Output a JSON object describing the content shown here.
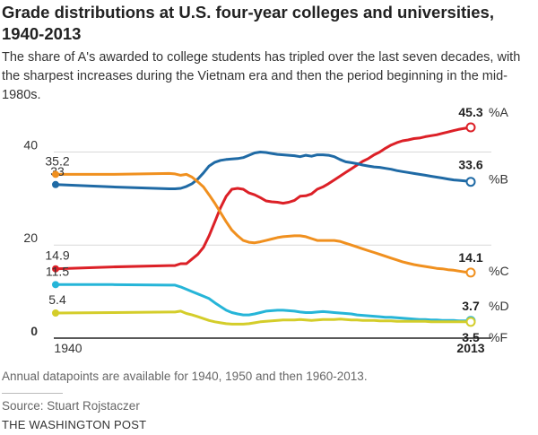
{
  "header": {
    "title": "Grade distributions at U.S. four-year colleges and universities, 1940-2013",
    "subtitle": "The share of A's awarded to college students has tripled over the last seven decades, with the sharpest increases during the Vietnam era and then the period beginning in the mid-1980s."
  },
  "footer": {
    "note": "Annual datapoints are available for 1940, 1950 and then 1960-2013.",
    "source": "Source: Stuart Rojstaczer",
    "brand": "THE WASHINGTON POST"
  },
  "chart_data": {
    "type": "line",
    "title": "Grade distributions at U.S. four-year colleges and universities, 1940-2013",
    "xlabel": "",
    "ylabel": "",
    "xlim": [
      1940,
      2013
    ],
    "ylim": [
      0,
      45.3
    ],
    "yticks": [
      0,
      20,
      40
    ],
    "xtick_labels": [
      "1940",
      "2013"
    ],
    "grid": true,
    "series": [
      {
        "name": "%A",
        "color": "#dc2027",
        "start_label": "14.9",
        "end_label": "45.3",
        "points": [
          [
            1940,
            14.9
          ],
          [
            1950,
            15.3
          ],
          [
            1960,
            15.6
          ],
          [
            1961,
            15.6
          ],
          [
            1962,
            16.0
          ],
          [
            1963,
            16.0
          ],
          [
            1964,
            17.0
          ],
          [
            1965,
            18.0
          ],
          [
            1966,
            19.5
          ],
          [
            1967,
            22.0
          ],
          [
            1968,
            25.0
          ],
          [
            1969,
            28.0
          ],
          [
            1970,
            30.5
          ],
          [
            1971,
            32.0
          ],
          [
            1972,
            32.2
          ],
          [
            1973,
            32.0
          ],
          [
            1974,
            31.2
          ],
          [
            1975,
            30.8
          ],
          [
            1976,
            30.2
          ],
          [
            1977,
            29.5
          ],
          [
            1978,
            29.3
          ],
          [
            1979,
            29.2
          ],
          [
            1980,
            29.0
          ],
          [
            1981,
            29.2
          ],
          [
            1982,
            29.6
          ],
          [
            1983,
            30.5
          ],
          [
            1984,
            30.6
          ],
          [
            1985,
            31.0
          ],
          [
            1986,
            32.0
          ],
          [
            1987,
            32.5
          ],
          [
            1988,
            33.2
          ],
          [
            1989,
            34.0
          ],
          [
            1990,
            34.8
          ],
          [
            1991,
            35.6
          ],
          [
            1992,
            36.4
          ],
          [
            1993,
            37.2
          ],
          [
            1994,
            38.0
          ],
          [
            1995,
            38.6
          ],
          [
            1996,
            39.4
          ],
          [
            1997,
            40.0
          ],
          [
            1998,
            40.8
          ],
          [
            1999,
            41.5
          ],
          [
            2000,
            42.0
          ],
          [
            2001,
            42.4
          ],
          [
            2002,
            42.6
          ],
          [
            2003,
            42.9
          ],
          [
            2004,
            43.0
          ],
          [
            2005,
            43.3
          ],
          [
            2006,
            43.5
          ],
          [
            2007,
            43.7
          ],
          [
            2008,
            44.0
          ],
          [
            2009,
            44.3
          ],
          [
            2010,
            44.6
          ],
          [
            2011,
            44.9
          ],
          [
            2012,
            45.1
          ],
          [
            2013,
            45.3
          ]
        ]
      },
      {
        "name": "%B",
        "color": "#1f6aa5",
        "start_label": "33",
        "end_label": "33.6",
        "points": [
          [
            1940,
            33.0
          ],
          [
            1950,
            32.5
          ],
          [
            1960,
            32.1
          ],
          [
            1961,
            32.1
          ],
          [
            1962,
            32.2
          ],
          [
            1963,
            32.6
          ],
          [
            1964,
            33.2
          ],
          [
            1965,
            34.2
          ],
          [
            1966,
            35.5
          ],
          [
            1967,
            37.0
          ],
          [
            1968,
            37.8
          ],
          [
            1969,
            38.2
          ],
          [
            1970,
            38.4
          ],
          [
            1971,
            38.5
          ],
          [
            1972,
            38.6
          ],
          [
            1973,
            38.8
          ],
          [
            1974,
            39.3
          ],
          [
            1975,
            39.8
          ],
          [
            1976,
            40.0
          ],
          [
            1977,
            39.9
          ],
          [
            1978,
            39.7
          ],
          [
            1979,
            39.5
          ],
          [
            1980,
            39.4
          ],
          [
            1981,
            39.3
          ],
          [
            1982,
            39.2
          ],
          [
            1983,
            39.0
          ],
          [
            1984,
            39.3
          ],
          [
            1985,
            39.1
          ],
          [
            1986,
            39.4
          ],
          [
            1987,
            39.4
          ],
          [
            1988,
            39.3
          ],
          [
            1989,
            39.0
          ],
          [
            1990,
            38.4
          ],
          [
            1991,
            37.9
          ],
          [
            1992,
            37.7
          ],
          [
            1993,
            37.5
          ],
          [
            1994,
            37.2
          ],
          [
            1995,
            37.0
          ],
          [
            1996,
            36.8
          ],
          [
            1997,
            36.7
          ],
          [
            1998,
            36.5
          ],
          [
            1999,
            36.3
          ],
          [
            2000,
            36.0
          ],
          [
            2001,
            35.8
          ],
          [
            2002,
            35.6
          ],
          [
            2003,
            35.4
          ],
          [
            2004,
            35.2
          ],
          [
            2005,
            35.0
          ],
          [
            2006,
            34.8
          ],
          [
            2007,
            34.6
          ],
          [
            2008,
            34.4
          ],
          [
            2009,
            34.2
          ],
          [
            2010,
            34.0
          ],
          [
            2011,
            33.9
          ],
          [
            2012,
            33.8
          ],
          [
            2013,
            33.6
          ]
        ]
      },
      {
        "name": "%C",
        "color": "#f0901f",
        "start_label": "35.2",
        "end_label": "14.1",
        "points": [
          [
            1940,
            35.2
          ],
          [
            1950,
            35.2
          ],
          [
            1960,
            35.4
          ],
          [
            1961,
            35.3
          ],
          [
            1962,
            35.0
          ],
          [
            1963,
            35.2
          ],
          [
            1964,
            34.6
          ],
          [
            1965,
            33.6
          ],
          [
            1966,
            32.5
          ],
          [
            1967,
            30.8
          ],
          [
            1968,
            29.0
          ],
          [
            1969,
            27.0
          ],
          [
            1970,
            25.0
          ],
          [
            1971,
            23.2
          ],
          [
            1972,
            22.0
          ],
          [
            1973,
            21.0
          ],
          [
            1974,
            20.6
          ],
          [
            1975,
            20.5
          ],
          [
            1976,
            20.7
          ],
          [
            1977,
            21.0
          ],
          [
            1978,
            21.3
          ],
          [
            1979,
            21.6
          ],
          [
            1980,
            21.8
          ],
          [
            1981,
            21.9
          ],
          [
            1982,
            22.0
          ],
          [
            1983,
            22.0
          ],
          [
            1984,
            21.8
          ],
          [
            1985,
            21.4
          ],
          [
            1986,
            21.0
          ],
          [
            1987,
            21.0
          ],
          [
            1988,
            21.0
          ],
          [
            1989,
            21.0
          ],
          [
            1990,
            20.8
          ],
          [
            1991,
            20.4
          ],
          [
            1992,
            20.0
          ],
          [
            1993,
            19.6
          ],
          [
            1994,
            19.2
          ],
          [
            1995,
            18.8
          ],
          [
            1996,
            18.4
          ],
          [
            1997,
            18.0
          ],
          [
            1998,
            17.6
          ],
          [
            1999,
            17.2
          ],
          [
            2000,
            16.8
          ],
          [
            2001,
            16.4
          ],
          [
            2002,
            16.1
          ],
          [
            2003,
            15.8
          ],
          [
            2004,
            15.6
          ],
          [
            2005,
            15.4
          ],
          [
            2006,
            15.2
          ],
          [
            2007,
            15.0
          ],
          [
            2008,
            14.9
          ],
          [
            2009,
            14.7
          ],
          [
            2010,
            14.6
          ],
          [
            2011,
            14.4
          ],
          [
            2012,
            14.2
          ],
          [
            2013,
            14.1
          ]
        ]
      },
      {
        "name": "%D",
        "color": "#26b5d8",
        "start_label": "11.5",
        "end_label": "3.7",
        "points": [
          [
            1940,
            11.5
          ],
          [
            1950,
            11.5
          ],
          [
            1960,
            11.4
          ],
          [
            1961,
            11.4
          ],
          [
            1962,
            11.0
          ],
          [
            1963,
            10.5
          ],
          [
            1964,
            10.0
          ],
          [
            1965,
            9.5
          ],
          [
            1966,
            9.0
          ],
          [
            1967,
            8.5
          ],
          [
            1968,
            7.6
          ],
          [
            1969,
            6.8
          ],
          [
            1970,
            6.0
          ],
          [
            1971,
            5.5
          ],
          [
            1972,
            5.2
          ],
          [
            1973,
            5.0
          ],
          [
            1974,
            5.0
          ],
          [
            1975,
            5.2
          ],
          [
            1976,
            5.5
          ],
          [
            1977,
            5.8
          ],
          [
            1978,
            5.9
          ],
          [
            1979,
            6.0
          ],
          [
            1980,
            6.0
          ],
          [
            1981,
            5.9
          ],
          [
            1982,
            5.8
          ],
          [
            1983,
            5.6
          ],
          [
            1984,
            5.5
          ],
          [
            1985,
            5.5
          ],
          [
            1986,
            5.6
          ],
          [
            1987,
            5.7
          ],
          [
            1988,
            5.6
          ],
          [
            1989,
            5.5
          ],
          [
            1990,
            5.4
          ],
          [
            1991,
            5.3
          ],
          [
            1992,
            5.2
          ],
          [
            1993,
            5.0
          ],
          [
            1994,
            4.9
          ],
          [
            1995,
            4.8
          ],
          [
            1996,
            4.7
          ],
          [
            1997,
            4.6
          ],
          [
            1998,
            4.5
          ],
          [
            1999,
            4.5
          ],
          [
            2000,
            4.4
          ],
          [
            2001,
            4.3
          ],
          [
            2002,
            4.2
          ],
          [
            2003,
            4.1
          ],
          [
            2004,
            4.0
          ],
          [
            2005,
            4.0
          ],
          [
            2006,
            3.9
          ],
          [
            2007,
            3.9
          ],
          [
            2008,
            3.8
          ],
          [
            2009,
            3.8
          ],
          [
            2010,
            3.8
          ],
          [
            2011,
            3.7
          ],
          [
            2012,
            3.7
          ],
          [
            2013,
            3.7
          ]
        ]
      },
      {
        "name": "%F",
        "color": "#d4cd2a",
        "start_label": "5.4",
        "end_label": "3.5",
        "points": [
          [
            1940,
            5.4
          ],
          [
            1950,
            5.5
          ],
          [
            1960,
            5.6
          ],
          [
            1961,
            5.6
          ],
          [
            1962,
            5.8
          ],
          [
            1963,
            5.3
          ],
          [
            1964,
            5.0
          ],
          [
            1965,
            4.6
          ],
          [
            1966,
            4.2
          ],
          [
            1967,
            3.8
          ],
          [
            1968,
            3.5
          ],
          [
            1969,
            3.3
          ],
          [
            1970,
            3.1
          ],
          [
            1971,
            3.0
          ],
          [
            1972,
            3.0
          ],
          [
            1973,
            3.0
          ],
          [
            1974,
            3.1
          ],
          [
            1975,
            3.3
          ],
          [
            1976,
            3.5
          ],
          [
            1977,
            3.6
          ],
          [
            1978,
            3.7
          ],
          [
            1979,
            3.8
          ],
          [
            1980,
            3.9
          ],
          [
            1981,
            3.9
          ],
          [
            1982,
            3.9
          ],
          [
            1983,
            4.0
          ],
          [
            1984,
            3.9
          ],
          [
            1985,
            3.8
          ],
          [
            1986,
            3.9
          ],
          [
            1987,
            4.0
          ],
          [
            1988,
            4.0
          ],
          [
            1989,
            4.0
          ],
          [
            1990,
            4.1
          ],
          [
            1991,
            4.0
          ],
          [
            1992,
            3.9
          ],
          [
            1993,
            3.9
          ],
          [
            1994,
            3.8
          ],
          [
            1995,
            3.8
          ],
          [
            1996,
            3.8
          ],
          [
            1997,
            3.7
          ],
          [
            1998,
            3.7
          ],
          [
            1999,
            3.7
          ],
          [
            2000,
            3.6
          ],
          [
            2001,
            3.6
          ],
          [
            2002,
            3.6
          ],
          [
            2003,
            3.6
          ],
          [
            2004,
            3.6
          ],
          [
            2005,
            3.6
          ],
          [
            2006,
            3.5
          ],
          [
            2007,
            3.5
          ],
          [
            2008,
            3.5
          ],
          [
            2009,
            3.5
          ],
          [
            2010,
            3.5
          ],
          [
            2011,
            3.5
          ],
          [
            2012,
            3.5
          ],
          [
            2013,
            3.5
          ]
        ]
      }
    ]
  }
}
